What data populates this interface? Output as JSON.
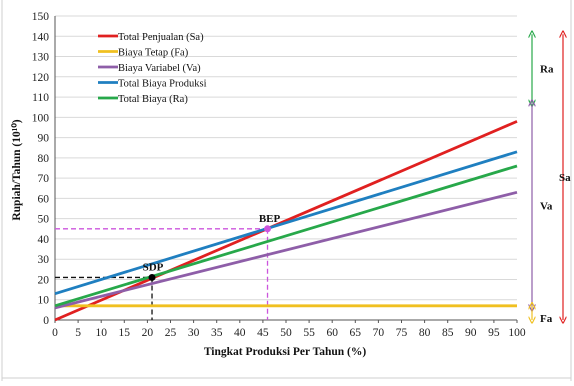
{
  "chart_data": {
    "type": "line",
    "xlabel": "Tingkat Produksi Per Tahun (%)",
    "ylabel": "Rupiah/Tahun (10¹⁰)",
    "xlim": [
      0,
      100
    ],
    "ylim": [
      0,
      150
    ],
    "x_ticks": [
      0,
      5,
      10,
      15,
      20,
      25,
      30,
      35,
      40,
      45,
      50,
      55,
      60,
      65,
      70,
      75,
      80,
      85,
      90,
      95,
      100
    ],
    "y_ticks": [
      0,
      10,
      20,
      30,
      40,
      50,
      60,
      70,
      80,
      90,
      100,
      110,
      120,
      130,
      140,
      150
    ],
    "grid": "horizontal",
    "legend_position": "top-left",
    "series": [
      {
        "name": "Total Penjualan (Sa)",
        "color": "#e02020",
        "x": [
          0,
          100
        ],
        "y": [
          0,
          98
        ]
      },
      {
        "name": "Biaya Tetap (Fa)",
        "color": "#f0c020",
        "x": [
          0,
          100
        ],
        "y": [
          7,
          7
        ]
      },
      {
        "name": "Biaya Variabel (Va)",
        "color": "#8e5ea8",
        "x": [
          0,
          100
        ],
        "y": [
          6,
          63
        ]
      },
      {
        "name": "Total Biaya Produksi",
        "color": "#1f7fc0",
        "x": [
          0,
          100
        ],
        "y": [
          13,
          83
        ]
      },
      {
        "name": "Total Biaya (Ra)",
        "color": "#27a84a",
        "x": [
          0,
          100
        ],
        "y": [
          7,
          76
        ]
      }
    ],
    "points": [
      {
        "label": "BEP",
        "x": 46,
        "y": 45,
        "color": "#cc55dd"
      },
      {
        "label": "SDP",
        "x": 21,
        "y": 21,
        "color": "#000000"
      }
    ],
    "brackets": [
      {
        "label": "Ra",
        "from": 107,
        "to": 141,
        "color": "#27a84a"
      },
      {
        "label": "Va",
        "from": 6,
        "to": 107,
        "color": "#8e5ea8"
      },
      {
        "label": "Fa",
        "from": 0,
        "to": 7,
        "color": "#f0c020"
      },
      {
        "label": "Sa",
        "from": 0,
        "to": 141,
        "color": "#e02020"
      }
    ]
  }
}
